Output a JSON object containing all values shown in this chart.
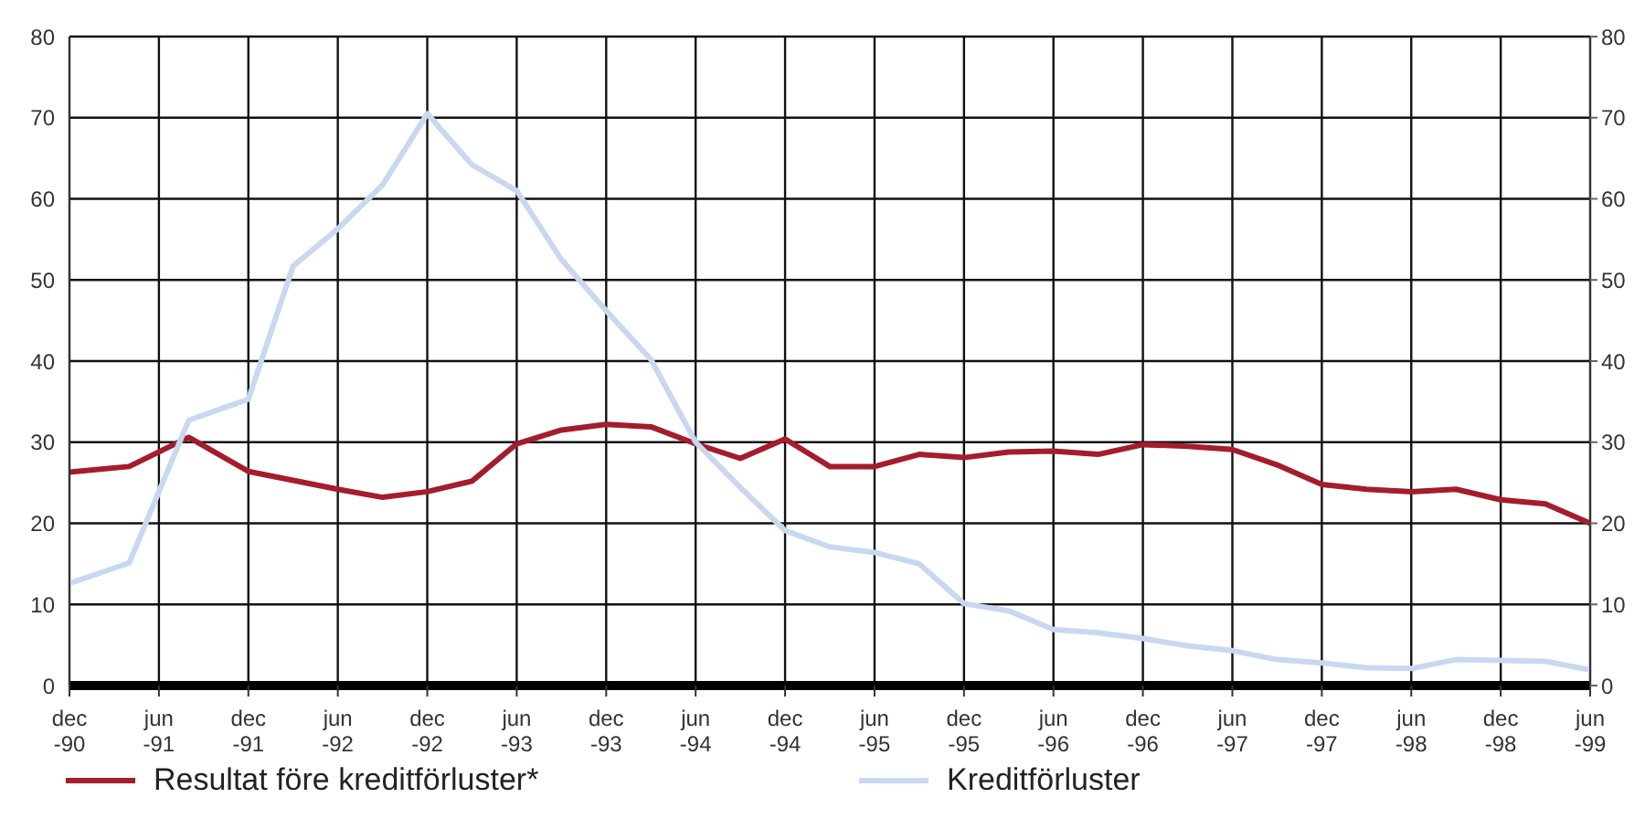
{
  "chart_data": {
    "type": "line",
    "x": [
      "1990-12",
      "1991-04",
      "1991-08",
      "1991-12",
      "1992-03",
      "1992-06",
      "1992-09",
      "1992-12",
      "1993-03",
      "1993-06",
      "1993-09",
      "1993-12",
      "1994-03",
      "1994-06",
      "1994-09",
      "1994-12",
      "1995-03",
      "1995-06",
      "1995-09",
      "1995-12",
      "1996-03",
      "1996-06",
      "1996-09",
      "1996-12",
      "1997-03",
      "1997-06",
      "1997-09",
      "1997-12",
      "1998-03",
      "1998-06",
      "1998-09",
      "1998-12",
      "1999-03",
      "1999-06"
    ],
    "series": [
      {
        "name": "Resultat före kreditförluster*",
        "color": "#a51c2c",
        "values": [
          26.3,
          27,
          30.6,
          26.4,
          25.3,
          24.2,
          23.2,
          23.9,
          25.2,
          29.8,
          31.5,
          32.2,
          31.9,
          29.8,
          28,
          30.4,
          27,
          27,
          28.5,
          28.1,
          28.8,
          28.9,
          28.5,
          29.7,
          29.5,
          29.1,
          27.2,
          24.8,
          24.2,
          23.9,
          24.2,
          22.9,
          22.4,
          20
        ]
      },
      {
        "name": "Kreditförluster",
        "color": "#c8d8ef",
        "values": [
          12.6,
          15.1,
          32.7,
          35.3,
          51.7,
          56.3,
          61.7,
          70.5,
          64.2,
          61,
          52.5,
          46.2,
          40.2,
          30,
          24.4,
          19.1,
          17.1,
          16.4,
          15,
          10.1,
          9.2,
          6.9,
          6.5,
          5.8,
          4.9,
          4.3,
          3.2,
          2.8,
          2.2,
          2.1,
          3.2,
          3.1,
          3,
          1.9
        ]
      }
    ],
    "xlim": [
      "1990-12",
      "1999-06"
    ],
    "xticks": [
      {
        "value": "1990-12",
        "label": "dec -90"
      },
      {
        "value": "1991-06",
        "label": "jun -91"
      },
      {
        "value": "1991-12",
        "label": "dec -91"
      },
      {
        "value": "1992-06",
        "label": "jun -92"
      },
      {
        "value": "1992-12",
        "label": "dec -92"
      },
      {
        "value": "1993-06",
        "label": "jun -93"
      },
      {
        "value": "1993-12",
        "label": "dec -93"
      },
      {
        "value": "1994-06",
        "label": "jun -94"
      },
      {
        "value": "1994-12",
        "label": "dec -94"
      },
      {
        "value": "1995-06",
        "label": "jun -95"
      },
      {
        "value": "1995-12",
        "label": "dec -95"
      },
      {
        "value": "1996-06",
        "label": "jun -96"
      },
      {
        "value": "1996-12",
        "label": "dec -96"
      },
      {
        "value": "1997-06",
        "label": "jun -97"
      },
      {
        "value": "1997-12",
        "label": "dec -97"
      },
      {
        "value": "1998-06",
        "label": "jun -98"
      },
      {
        "value": "1998-12",
        "label": "dec -98"
      },
      {
        "value": "1999-06",
        "label": "jun -99"
      }
    ],
    "ylim": [
      0,
      80
    ],
    "yticks": [
      0,
      10,
      20,
      30,
      40,
      50,
      60,
      70,
      80
    ],
    "y2lim": [
      0,
      80
    ],
    "y2ticks": [
      0,
      10,
      20,
      30,
      40,
      50,
      60,
      70,
      80
    ],
    "grid": true,
    "legend": "bottom",
    "marker": "none",
    "line_style": "solid"
  }
}
